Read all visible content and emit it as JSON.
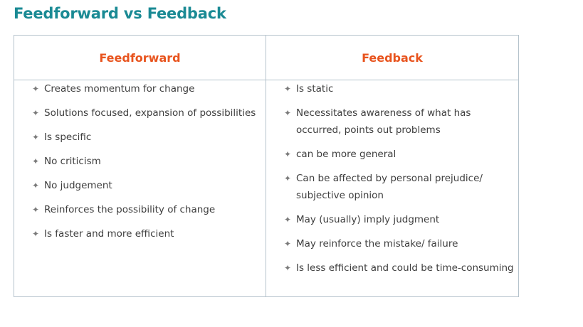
{
  "title": "Feedforward vs Feedback",
  "table": {
    "headers": [
      "Feedforward",
      "Feedback"
    ],
    "feedforward_items": [
      "Creates momentum for change",
      "Solutions focused, expansion of possibilities",
      "Is specific",
      "No criticism",
      "No judgement",
      "Reinforces the possibility of change",
      "Is faster and more efficient"
    ],
    "feedback_items": [
      "Is static",
      "Necessitates awareness of what has occurred, points out problems",
      "can be more general",
      "Can be affected by personal prejudice/ subjective opinion",
      "May (usually) imply judgment",
      "May reinforce the mistake/ failure",
      "Is less efficient and could be time-consuming"
    ]
  },
  "colors": {
    "title": "#1a8a94",
    "header": "#e8541e",
    "text": "#3e3e3e",
    "border": "#b5c2cc"
  },
  "icons": {
    "bullet": "four-point-star-icon"
  }
}
